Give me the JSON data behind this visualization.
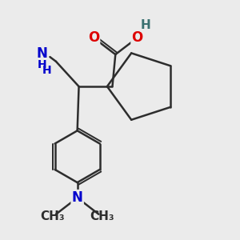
{
  "background_color": "#ebebeb",
  "bond_color": "#2d2d2d",
  "bond_width": 1.8,
  "atom_colors": {
    "O": "#dd0000",
    "N": "#0000cc",
    "H": "#3a7070",
    "C": "#2d2d2d"
  },
  "font_size_large": 12,
  "font_size_small": 10,
  "font_size_h": 11
}
